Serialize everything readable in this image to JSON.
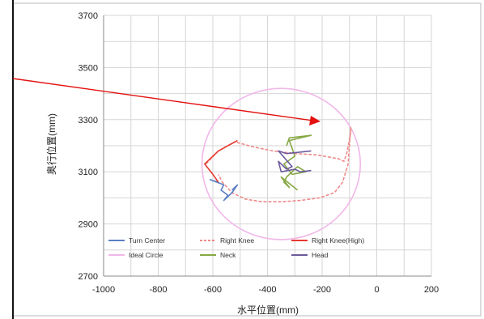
{
  "chart_data": {
    "type": "line",
    "title": "",
    "xlabel": "水平位置(mm)",
    "ylabel": "奥行位置(mm)",
    "xlim": [
      -1000,
      200
    ],
    "ylim": [
      2700,
      3700
    ],
    "x_ticks": [
      "-1000",
      "-800",
      "-600",
      "-400",
      "-200",
      "0",
      "200"
    ],
    "y_ticks": [
      "2700",
      "2900",
      "3100",
      "3300",
      "3500",
      "3700"
    ],
    "grid": true,
    "legend_position": "bottom-inside",
    "series": [
      {
        "name": "Turn Center",
        "color": "#5b7fc4",
        "dash": "solid",
        "points": [
          [
            -580,
            3060
          ],
          [
            -610,
            3070
          ],
          [
            -560,
            3050
          ],
          [
            -570,
            3030
          ],
          [
            -545,
            3010
          ],
          [
            -560,
            2990
          ],
          [
            -530,
            3020
          ],
          [
            -510,
            3050
          ],
          [
            -530,
            3030
          ]
        ]
      },
      {
        "name": "Right Knee",
        "color": "#ef8a8a",
        "dash": "dashed",
        "points": [
          [
            -625,
            3130
          ],
          [
            -580,
            3180
          ],
          [
            -520,
            3215
          ],
          [
            -450,
            3195
          ],
          [
            -380,
            3180
          ],
          [
            -300,
            3170
          ],
          [
            -220,
            3165
          ],
          [
            -140,
            3150
          ],
          [
            -120,
            3140
          ],
          [
            -110,
            3170
          ],
          [
            -95,
            3250
          ],
          [
            -95,
            3270
          ],
          [
            -105,
            3130
          ],
          [
            -125,
            3060
          ],
          [
            -155,
            3020
          ],
          [
            -210,
            3000
          ],
          [
            -280,
            2990
          ],
          [
            -350,
            2985
          ],
          [
            -420,
            2985
          ],
          [
            -480,
            2995
          ],
          [
            -530,
            3020
          ],
          [
            -565,
            3060
          ],
          [
            -580,
            3090
          ]
        ]
      },
      {
        "name": "Right Knee(High)",
        "color": "#e8382f",
        "dash": "solid",
        "points": [
          [
            -580,
            3060
          ],
          [
            -600,
            3090
          ],
          [
            -630,
            3130
          ],
          [
            -580,
            3180
          ],
          [
            -510,
            3220
          ]
        ]
      },
      {
        "name": "Ideal Circle",
        "color": "#f1b7e8",
        "dash": "solid",
        "circle": {
          "cx": -350,
          "cy": 3130,
          "r": 290
        }
      },
      {
        "name": "Neck",
        "color": "#86a844",
        "dash": "solid",
        "points": [
          [
            -330,
            3200
          ],
          [
            -320,
            3230
          ],
          [
            -240,
            3240
          ],
          [
            -320,
            3220
          ],
          [
            -300,
            3160
          ],
          [
            -340,
            3130
          ],
          [
            -310,
            3090
          ],
          [
            -260,
            3100
          ],
          [
            -290,
            3120
          ],
          [
            -330,
            3080
          ],
          [
            -340,
            3060
          ],
          [
            -320,
            3040
          ],
          [
            -350,
            3080
          ],
          [
            -290,
            3030
          ]
        ]
      },
      {
        "name": "Head",
        "color": "#6c5a9e",
        "dash": "solid",
        "points": [
          [
            -240,
            3180
          ],
          [
            -330,
            3170
          ],
          [
            -360,
            3180
          ],
          [
            -310,
            3120
          ],
          [
            -330,
            3110
          ],
          [
            -360,
            3140
          ],
          [
            -350,
            3100
          ],
          [
            -300,
            3110
          ],
          [
            -280,
            3100
          ],
          [
            -240,
            3105
          ]
        ]
      }
    ]
  },
  "annotation": {
    "color": "#e3110f"
  }
}
